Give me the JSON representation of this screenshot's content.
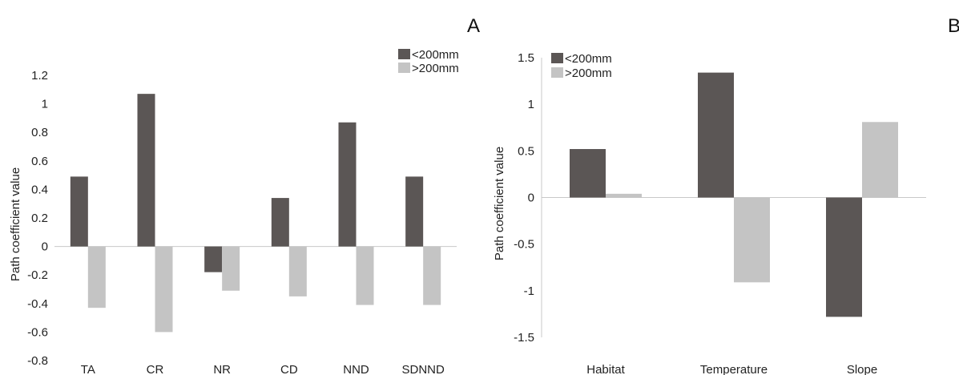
{
  "figure": {
    "colors": {
      "dark": "#5b5655",
      "light": "#c4c4c4",
      "axis": "#c8c8c8"
    }
  },
  "chart_data": [
    {
      "type": "bar",
      "panel_label": "A",
      "ylabel": "Path coefficient value",
      "categories": [
        "TA",
        "CR",
        "NR",
        "CD",
        "NND",
        "SDNND"
      ],
      "ylim": [
        -0.8,
        1.2
      ],
      "yticks": [
        "-0.8",
        "-0.6",
        "-0.4",
        "-0.2",
        "0",
        "0.2",
        "0.4",
        "0.6",
        "0.8",
        "1",
        "1.2"
      ],
      "legend_position": "top-right",
      "series": [
        {
          "name": "<200mm",
          "values": [
            0.49,
            1.07,
            -0.18,
            0.34,
            0.87,
            0.49
          ]
        },
        {
          "name": ">200mm",
          "values": [
            -0.43,
            -0.6,
            -0.31,
            -0.35,
            -0.41,
            -0.41
          ]
        }
      ]
    },
    {
      "type": "bar",
      "panel_label": "B",
      "ylabel": "Path coefficient value",
      "categories": [
        "Habitat",
        "Temperature",
        "Slope"
      ],
      "ylim": [
        -1.5,
        1.5
      ],
      "yticks": [
        "-1.5",
        "-1",
        "-0.5",
        "0",
        "0.5",
        "1",
        "1.5"
      ],
      "legend_position": "top-left",
      "series": [
        {
          "name": "<200mm",
          "values": [
            0.52,
            1.34,
            -1.28
          ]
        },
        {
          "name": ">200mm",
          "values": [
            0.04,
            -0.91,
            0.81
          ]
        }
      ]
    }
  ]
}
